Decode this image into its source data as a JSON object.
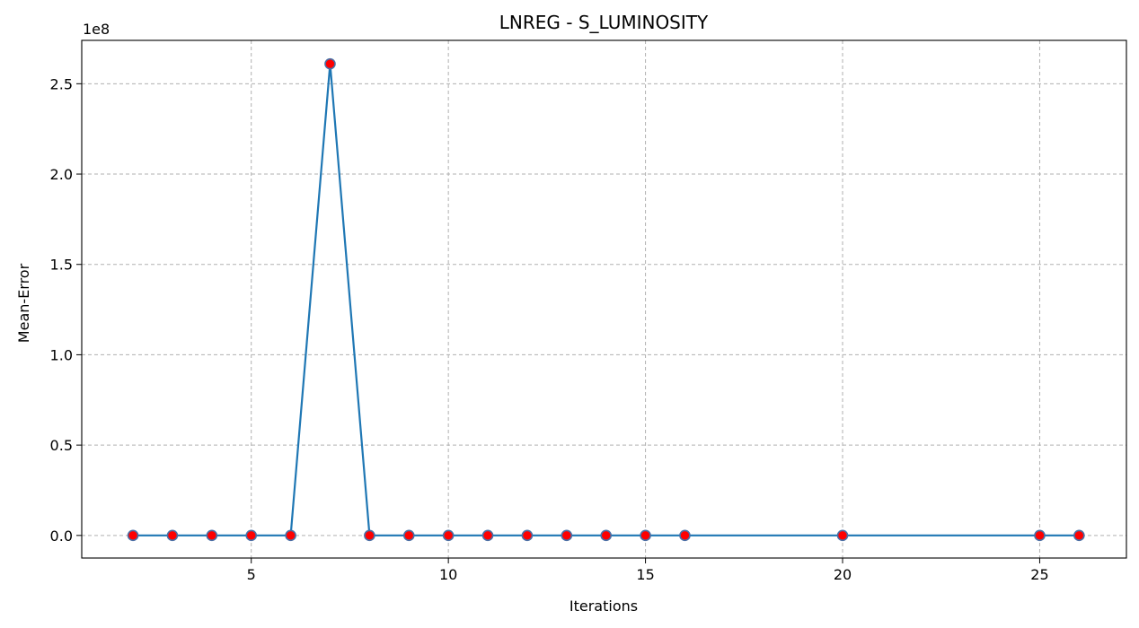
{
  "chart_data": {
    "type": "line",
    "title": "LNREG - S_LUMINOSITY",
    "xlabel": "Iterations",
    "ylabel": "Mean-Error",
    "y_offset_label": "1e8",
    "y_scale": 100000000,
    "xlim": [
      0.7,
      27.2
    ],
    "ylim": [
      -12500000,
      274000000
    ],
    "x_ticks": [
      5,
      10,
      15,
      20,
      25
    ],
    "x_tick_labels": [
      "5",
      "10",
      "15",
      "20",
      "25"
    ],
    "y_ticks": [
      0,
      50000000,
      100000000,
      150000000,
      200000000,
      250000000
    ],
    "y_tick_labels": [
      "0.0",
      "0.5",
      "1.0",
      "1.5",
      "2.0",
      "2.5"
    ],
    "grid": true,
    "series": [
      {
        "x": [
          2,
          3,
          4,
          5,
          6,
          7,
          8,
          9,
          10,
          11,
          12,
          13,
          14,
          15,
          16,
          20,
          25,
          26
        ],
        "y": [
          0,
          0,
          0,
          0,
          0,
          261000000,
          0,
          0,
          0,
          0,
          0,
          0,
          0,
          0,
          0,
          0,
          0,
          0
        ],
        "line_color": "#1f77b4",
        "marker_color": "#ff0000",
        "marker_edge_color": "#4a6fa5"
      }
    ]
  }
}
